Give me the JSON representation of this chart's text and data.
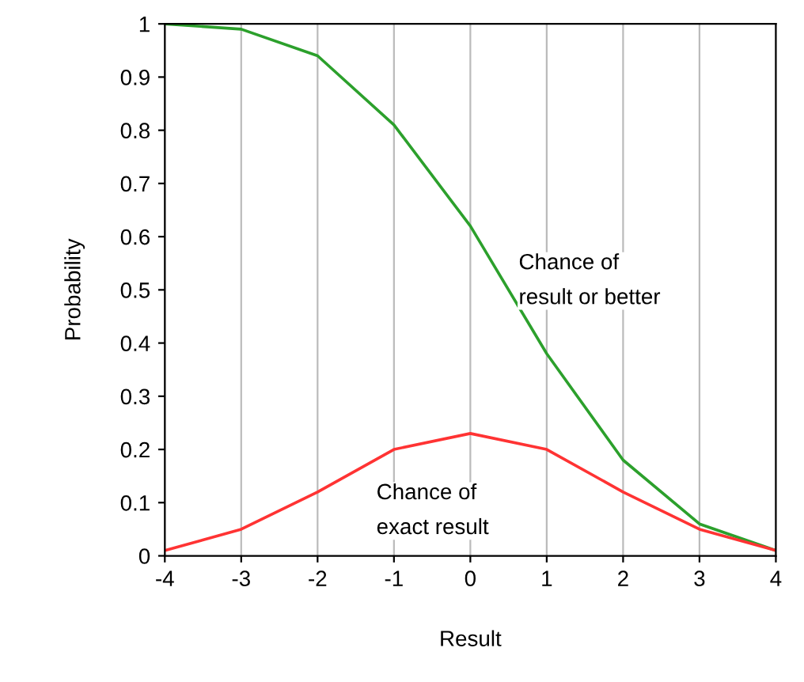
{
  "chart_data": {
    "type": "line",
    "xlabel": "Result",
    "ylabel": "Probability",
    "x": [
      -4,
      -3,
      -2,
      -1,
      0,
      1,
      2,
      3,
      4
    ],
    "series": [
      {
        "name": "Chance of\nresult or better",
        "color": "#2ca02c",
        "values": [
          1.0,
          0.99,
          0.94,
          0.81,
          0.62,
          0.38,
          0.18,
          0.06,
          0.01
        ]
      },
      {
        "name": "Chance of\nexact result",
        "color": "#ff3333",
        "values": [
          0.01,
          0.05,
          0.12,
          0.2,
          0.23,
          0.2,
          0.12,
          0.05,
          0.01
        ]
      }
    ],
    "xlim": [
      -4,
      4
    ],
    "ylim": [
      0,
      1
    ],
    "xticks": [
      -4,
      -3,
      -2,
      -1,
      0,
      1,
      2,
      3,
      4
    ],
    "yticks": [
      0,
      0.1,
      0.2,
      0.3,
      0.4,
      0.5,
      0.6,
      0.7,
      0.8,
      0.9,
      1
    ],
    "grid": "x",
    "marker": "none",
    "line_style": "solid"
  }
}
